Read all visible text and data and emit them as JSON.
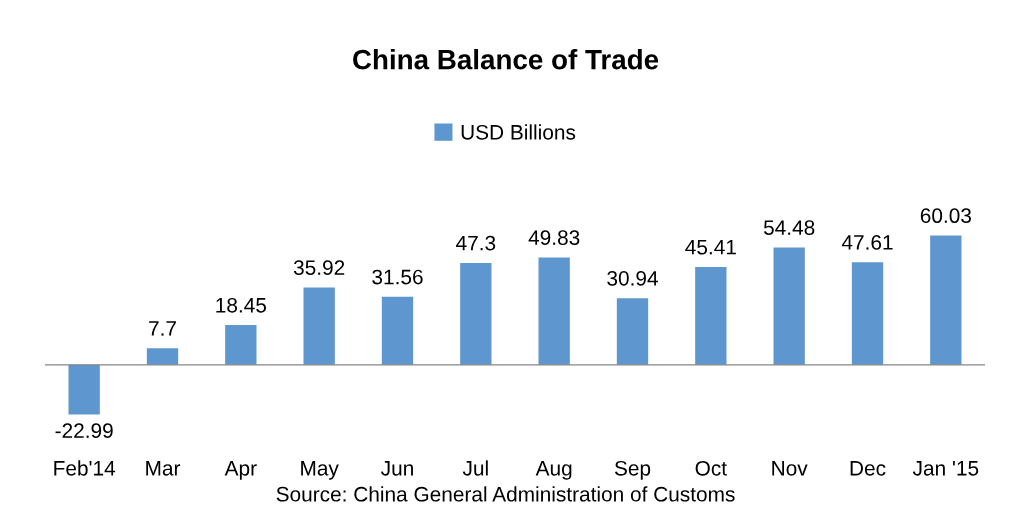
{
  "chart_data": {
    "type": "bar",
    "title": "China Balance of Trade",
    "categories": [
      "Feb'14",
      "Mar",
      "Apr",
      "May",
      "Jun",
      "Jul",
      "Aug",
      "Sep",
      "Oct",
      "Nov",
      "Dec",
      "Jan '15"
    ],
    "series": [
      {
        "name": "USD Billions",
        "color": "#5e97cf",
        "values": [
          -22.99,
          7.7,
          18.45,
          35.92,
          31.56,
          47.3,
          49.83,
          30.94,
          45.41,
          54.48,
          47.61,
          60.03
        ]
      }
    ],
    "data_labels": true,
    "legend": "top",
    "grid": false,
    "annotations": [
      "Source: China General Administration of Customs"
    ]
  }
}
